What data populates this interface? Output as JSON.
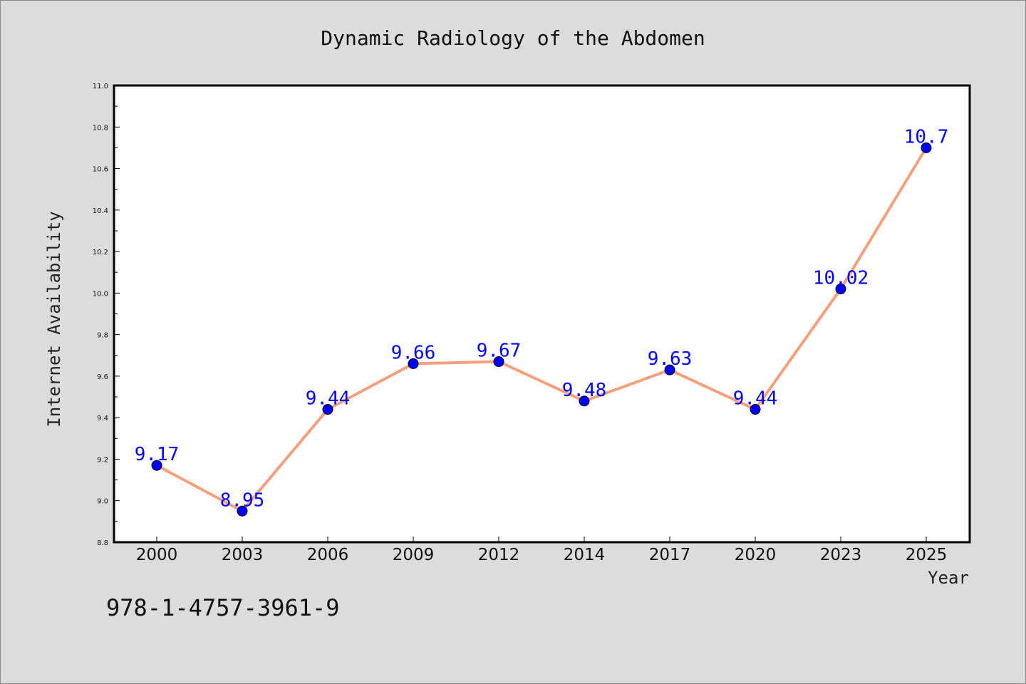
{
  "chart_data": {
    "type": "line",
    "title": "Dynamic Radiology of the Abdomen",
    "xlabel": "Year",
    "ylabel": "Internet Availability",
    "categories": [
      "2000",
      "2003",
      "2006",
      "2009",
      "2012",
      "2014",
      "2017",
      "2020",
      "2023",
      "2025"
    ],
    "values": [
      9.17,
      8.95,
      9.44,
      9.66,
      9.67,
      9.48,
      9.63,
      9.44,
      10.02,
      10.7
    ],
    "data_labels": [
      "9.17",
      "8.95",
      "9.44",
      "9.66",
      "9.67",
      "9.48",
      "9.63",
      "9.44",
      "10.02",
      "10.7"
    ],
    "ylim": [
      8.8,
      11.0
    ],
    "yticks": [
      "8.8",
      "9.0",
      "9.2",
      "9.4",
      "9.6",
      "9.8",
      "10.0",
      "10.2",
      "10.4",
      "10.6",
      "10.8",
      "11.0"
    ],
    "grid": false,
    "colors": {
      "line": "#f4a07c",
      "marker": "#0000ff",
      "label": "#0000ff",
      "background": "#dcdcdc",
      "plot": "#ffffff"
    }
  },
  "footer": {
    "isbn": "978-1-4757-3961-9"
  }
}
